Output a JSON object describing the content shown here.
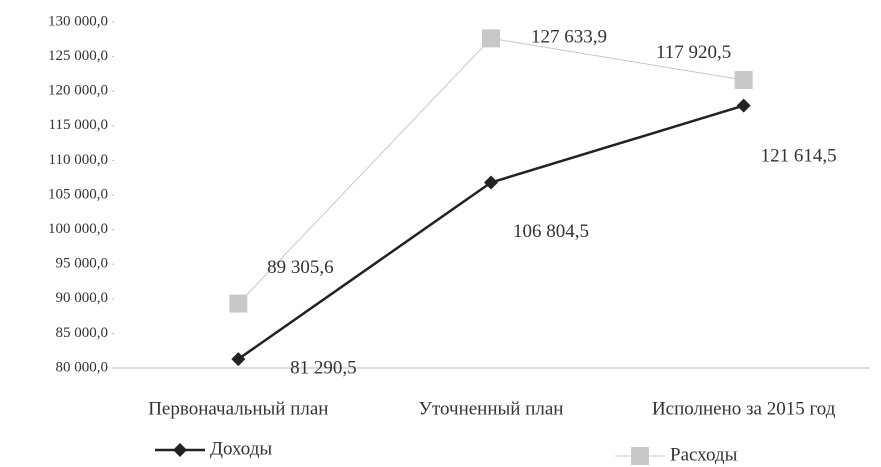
{
  "chart_data": {
    "type": "line",
    "categories": [
      "Первоначальный план",
      "Уточненный план",
      "Исполнено за 2015 год"
    ],
    "series": [
      {
        "name": "Доходы",
        "color": "#222222",
        "marker": "diamond",
        "values": [
          81290.5,
          106804.5,
          117920.5
        ],
        "value_labels": [
          "81 290,5",
          "106 804,5",
          "117 920,5"
        ]
      },
      {
        "name": "Расходы",
        "color": "#c8c8c8",
        "marker": "square",
        "values": [
          89305.6,
          127633.9,
          121614.5
        ],
        "value_labels": [
          "89 305,6",
          "127 633,9",
          "121 614,5"
        ]
      }
    ],
    "ylim": [
      80000,
      130000
    ],
    "yticks": [
      {
        "value": 80000,
        "label": "80 000,0"
      },
      {
        "value": 85000,
        "label": "85 000,0"
      },
      {
        "value": 90000,
        "label": "90 000,0"
      },
      {
        "value": 95000,
        "label": "95 000,0"
      },
      {
        "value": 100000,
        "label": "100 000,0"
      },
      {
        "value": 105000,
        "label": "105 000,0"
      },
      {
        "value": 110000,
        "label": "110 000,0"
      },
      {
        "value": 115000,
        "label": "115 000,0"
      },
      {
        "value": 120000,
        "label": "120 000,0"
      },
      {
        "value": 125000,
        "label": "125 000,0"
      },
      {
        "value": 130000,
        "label": "130 000,0"
      }
    ],
    "grid": false,
    "legend": "bottom"
  }
}
